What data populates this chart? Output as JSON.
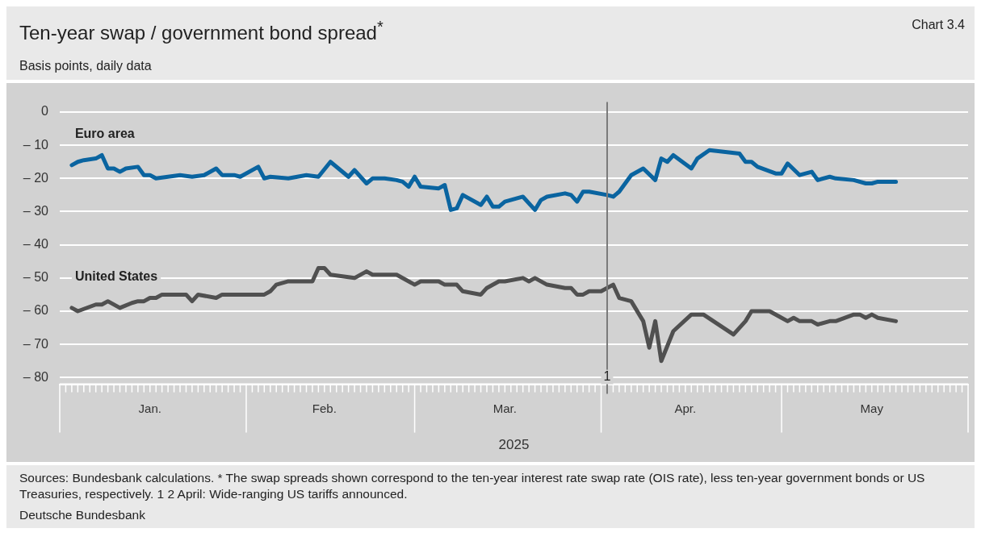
{
  "chart_data": {
    "type": "line",
    "title": "Ten-year swap / government bond spread$^{*}$",
    "subtitle": "Basis points, daily data",
    "xlabel": "2025",
    "annotations": [
      "Chart 3.4",
      "Sources: Bundesbank calculations. * The swap spreads shown correspond to the ten-year interest rate swap rate (OIS rate), less ten-year government bonds or US Treasuries, respectively. 1 2 April: Wide-ranging US tariffs announced.",
      "Deutsche Bundesbank"
    ],
    "xlim": [
      "2025-01-01",
      "2025-06-01"
    ],
    "xticks": [
      {
        "value": "2025-01-16",
        "label": "Jan."
      },
      {
        "value": "2025-02-14",
        "label": "Feb."
      },
      {
        "value": "2025-03-16",
        "label": "Mar."
      },
      {
        "value": "2025-04-15",
        "label": "Apr."
      },
      {
        "value": "2025-05-16",
        "label": "May"
      }
    ],
    "ylim": [
      -82,
      3
    ],
    "yticks": [
      {
        "value": 0,
        "label": "0"
      },
      {
        "value": -10,
        "label": "– 10"
      },
      {
        "value": -20,
        "label": "– 20"
      },
      {
        "value": -30,
        "label": "– 30"
      },
      {
        "value": -40,
        "label": "– 40"
      },
      {
        "value": -50,
        "label": "– 50"
      },
      {
        "value": -60,
        "label": "– 60"
      },
      {
        "value": -70,
        "label": "– 70"
      },
      {
        "value": -80,
        "label": "– 80"
      }
    ],
    "grid": "y",
    "legend": false,
    "marker": "none",
    "line_style": "solid",
    "ref_lines": [
      {
        "axis": "x",
        "value": "2025-04-02",
        "label": "1",
        "color": "#7a7a7a"
      }
    ],
    "series": [
      {
        "name": "Euro area",
        "color": "#0a64a0",
        "x": [
          "2025-01-03",
          "2025-01-04",
          "2025-01-05",
          "2025-01-07",
          "2025-01-08",
          "2025-01-09",
          "2025-01-10",
          "2025-01-11",
          "2025-01-12",
          "2025-01-14",
          "2025-01-15",
          "2025-01-16",
          "2025-01-17",
          "2025-01-21",
          "2025-01-23",
          "2025-01-25",
          "2025-01-27",
          "2025-01-28",
          "2025-01-30",
          "2025-01-31",
          "2025-02-03",
          "2025-02-04",
          "2025-02-05",
          "2025-02-08",
          "2025-02-11",
          "2025-02-13",
          "2025-02-15",
          "2025-02-18",
          "2025-02-19",
          "2025-02-21",
          "2025-02-22",
          "2025-02-24",
          "2025-02-26",
          "2025-02-27",
          "2025-02-28",
          "2025-03-01",
          "2025-03-02",
          "2025-03-05",
          "2025-03-06",
          "2025-03-07",
          "2025-03-08",
          "2025-03-09",
          "2025-03-12",
          "2025-03-13",
          "2025-03-14",
          "2025-03-15",
          "2025-03-16",
          "2025-03-19",
          "2025-03-21",
          "2025-03-22",
          "2025-03-23",
          "2025-03-26",
          "2025-03-27",
          "2025-03-28",
          "2025-03-29",
          "2025-03-30",
          "2025-04-02",
          "2025-04-03",
          "2025-04-04",
          "2025-04-06",
          "2025-04-08",
          "2025-04-10",
          "2025-04-11",
          "2025-04-12",
          "2025-04-13",
          "2025-04-16",
          "2025-04-17",
          "2025-04-19",
          "2025-04-24",
          "2025-04-25",
          "2025-04-26",
          "2025-04-27",
          "2025-04-30",
          "2025-05-01",
          "2025-05-02",
          "2025-05-04",
          "2025-05-06",
          "2025-05-07",
          "2025-05-09",
          "2025-05-10",
          "2025-05-13",
          "2025-05-15",
          "2025-05-16",
          "2025-05-17",
          "2025-05-20"
        ],
        "values": [
          -16,
          -15,
          -14.5,
          -14,
          -13,
          -17,
          -17,
          -18,
          -17,
          -16.5,
          -19,
          -19,
          -20,
          -19,
          -19.5,
          -19,
          -17,
          -19,
          -19,
          -19.5,
          -16.5,
          -20,
          -19.5,
          -20,
          -19,
          -19.5,
          -15,
          -19.5,
          -17.5,
          -21.5,
          -20,
          -20,
          -20.5,
          -21,
          -22.5,
          -19.5,
          -22.5,
          -23,
          -22,
          -29.5,
          -29,
          -25,
          -28,
          -25.5,
          -28.5,
          -28.5,
          -27,
          -25.5,
          -29.5,
          -26.5,
          -25.5,
          -24.5,
          -25,
          -27,
          -24,
          -24,
          -25,
          -25.5,
          -24,
          -19,
          -17,
          -20.5,
          -14,
          -15,
          -13,
          -17,
          -14,
          -11.5,
          -12.5,
          -15,
          -15,
          -16.5,
          -18.5,
          -18.5,
          -15.5,
          -19,
          -18,
          -20.5,
          -19.5,
          -20,
          -20.5,
          -21.5,
          -21.5,
          -21,
          -21
        ]
      },
      {
        "name": "United States",
        "color": "#505050",
        "x": [
          "2025-01-03",
          "2025-01-04",
          "2025-01-07",
          "2025-01-08",
          "2025-01-09",
          "2025-01-11",
          "2025-01-13",
          "2025-01-14",
          "2025-01-15",
          "2025-01-16",
          "2025-01-17",
          "2025-01-18",
          "2025-01-22",
          "2025-01-23",
          "2025-01-24",
          "2025-01-27",
          "2025-01-28",
          "2025-02-04",
          "2025-02-05",
          "2025-02-06",
          "2025-02-08",
          "2025-02-12",
          "2025-02-13",
          "2025-02-14",
          "2025-02-15",
          "2025-02-19",
          "2025-02-21",
          "2025-02-22",
          "2025-02-26",
          "2025-03-01",
          "2025-03-02",
          "2025-03-05",
          "2025-03-06",
          "2025-03-08",
          "2025-03-09",
          "2025-03-12",
          "2025-03-13",
          "2025-03-15",
          "2025-03-16",
          "2025-03-19",
          "2025-03-20",
          "2025-03-21",
          "2025-03-23",
          "2025-03-26",
          "2025-03-27",
          "2025-03-28",
          "2025-03-29",
          "2025-03-30",
          "2025-04-01",
          "2025-04-03",
          "2025-04-04",
          "2025-04-06",
          "2025-04-08",
          "2025-04-09",
          "2025-04-10",
          "2025-04-11",
          "2025-04-13",
          "2025-04-16",
          "2025-04-18",
          "2025-04-23",
          "2025-04-25",
          "2025-04-26",
          "2025-04-29",
          "2025-05-01",
          "2025-05-02",
          "2025-05-03",
          "2025-05-04",
          "2025-05-06",
          "2025-05-07",
          "2025-05-09",
          "2025-05-10",
          "2025-05-13",
          "2025-05-14",
          "2025-05-15",
          "2025-05-16",
          "2025-05-17",
          "2025-05-20"
        ],
        "values": [
          -59,
          -60,
          -58,
          -58,
          -57,
          -59,
          -57.5,
          -57,
          -57,
          -56,
          -56,
          -55,
          -55,
          -57,
          -55,
          -56,
          -55,
          -55,
          -54,
          -52,
          -51,
          -51,
          -47,
          -47,
          -49,
          -50,
          -48,
          -49,
          -49,
          -52,
          -51,
          -51,
          -52,
          -52,
          -54,
          -55,
          -53,
          -51,
          -51,
          -50,
          -51,
          -50,
          -52,
          -53,
          -53,
          -55,
          -55,
          -54,
          -54,
          -52,
          -56,
          -57,
          -63,
          -71,
          -63,
          -75,
          -66,
          -61,
          -61,
          -67,
          -63,
          -60,
          -60,
          -62,
          -63,
          -62,
          -63,
          -63,
          -64,
          -63,
          -63,
          -61,
          -61,
          -62,
          -61,
          -62,
          -63
        ]
      }
    ]
  }
}
